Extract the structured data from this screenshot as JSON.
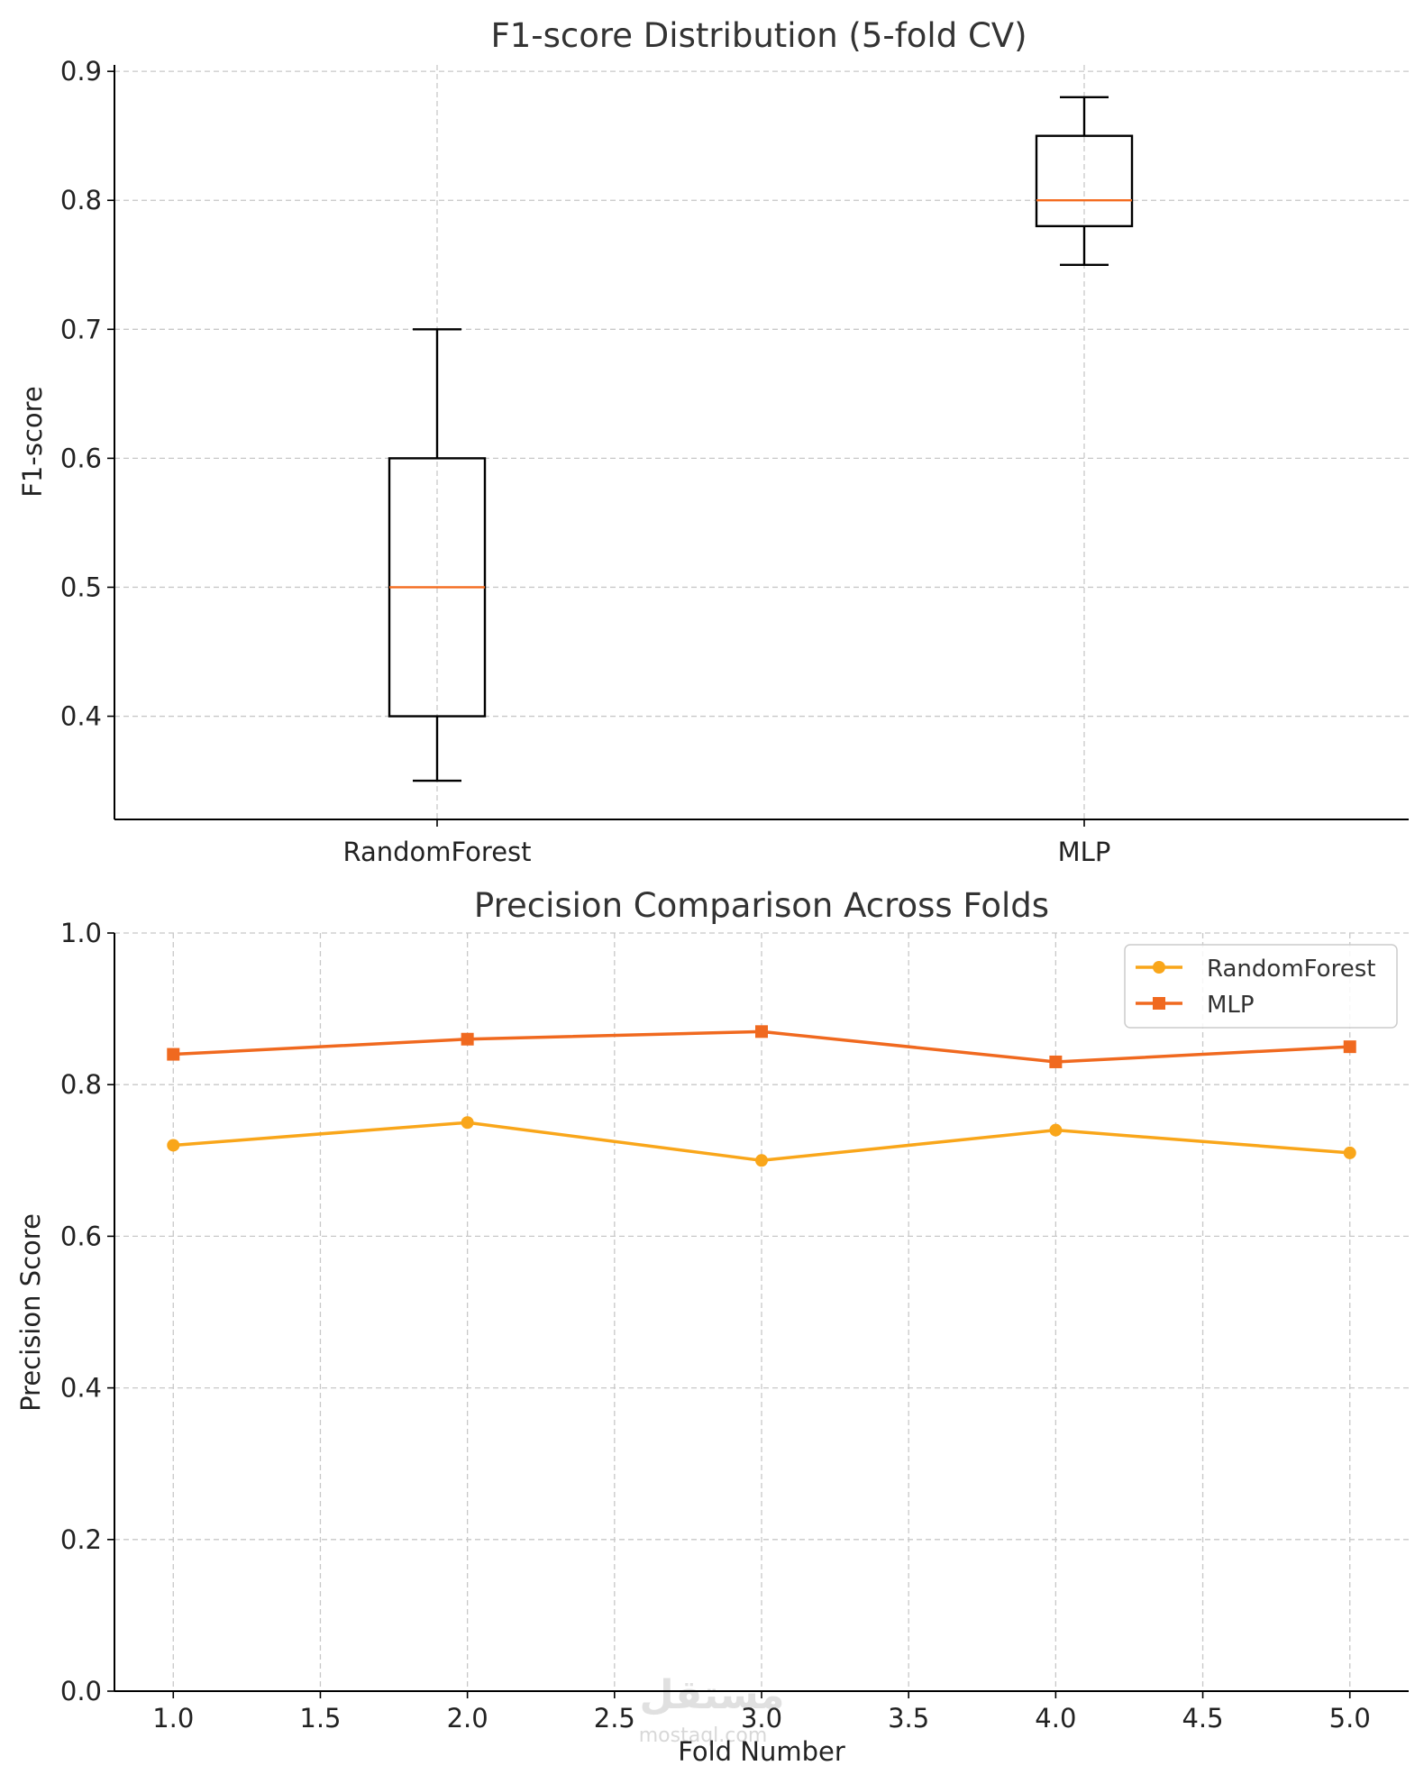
{
  "chart_data": [
    {
      "type": "box",
      "title": "F1-score Distribution (5-fold CV)",
      "xlabel": "",
      "ylabel": "F1-score",
      "ylim": [
        0.32,
        0.905
      ],
      "yticks": [
        0.4,
        0.5,
        0.6,
        0.7,
        0.8,
        0.9
      ],
      "ytick_labels": [
        "0.4",
        "0.5",
        "0.6",
        "0.7",
        "0.8",
        "0.9"
      ],
      "grid": true,
      "categories": [
        "RandomForest",
        "MLP"
      ],
      "boxes": [
        {
          "name": "RandomForest",
          "whisker_low": 0.35,
          "q1": 0.4,
          "median": 0.5,
          "q3": 0.6,
          "whisker_high": 0.7
        },
        {
          "name": "MLP",
          "whisker_low": 0.75,
          "q1": 0.78,
          "median": 0.8,
          "q3": 0.85,
          "whisker_high": 0.88
        }
      ],
      "colors": {
        "box": "#000000",
        "median": "#f46b1f"
      }
    },
    {
      "type": "line",
      "title": "Precision Comparison Across Folds",
      "xlabel": "Fold Number",
      "ylabel": "Precision Score",
      "xlim": [
        0.8,
        5.2
      ],
      "ylim": [
        0.0,
        1.0
      ],
      "xticks": [
        1.0,
        1.5,
        2.0,
        2.5,
        3.0,
        3.5,
        4.0,
        4.5,
        5.0
      ],
      "xtick_labels": [
        "1.0",
        "1.5",
        "2.0",
        "2.5",
        "3.0",
        "3.5",
        "4.0",
        "4.5",
        "5.0"
      ],
      "yticks": [
        0.0,
        0.2,
        0.4,
        0.6,
        0.8,
        1.0
      ],
      "ytick_labels": [
        "0.0",
        "0.2",
        "0.4",
        "0.6",
        "0.8",
        "1.0"
      ],
      "grid": true,
      "legend_position": "top-right",
      "x": [
        1,
        2,
        3,
        4,
        5
      ],
      "series": [
        {
          "name": "RandomForest",
          "values": [
            0.72,
            0.75,
            0.7,
            0.74,
            0.71
          ],
          "color": "#f9a61a",
          "marker": "circle"
        },
        {
          "name": "MLP",
          "values": [
            0.84,
            0.86,
            0.87,
            0.83,
            0.85
          ],
          "color": "#f0691f",
          "marker": "square"
        }
      ]
    }
  ],
  "watermark": {
    "text": "مستقل",
    "subtext": "mostaql.com"
  }
}
